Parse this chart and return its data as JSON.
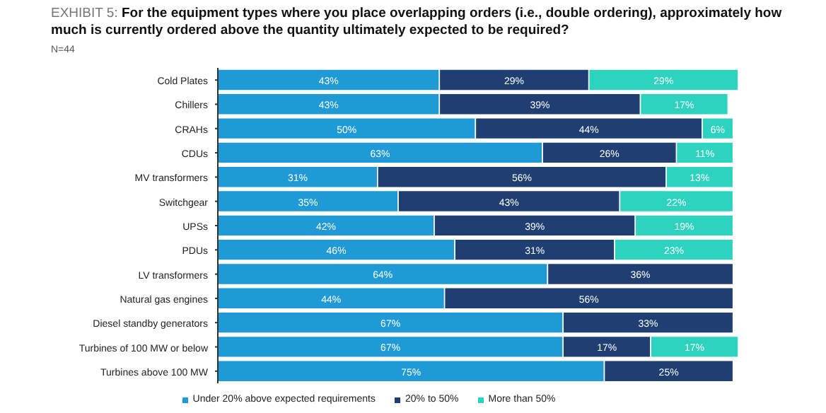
{
  "chart_data": {
    "type": "bar",
    "orientation": "horizontal",
    "stacked": true,
    "title": "EXHIBIT 5: For the equipment types where you place overlapping orders (i.e., double ordering), approximately how much is currently ordered above the quantity ultimately expected to be required?",
    "subtitle": "N=44",
    "categories": [
      "Cold Plates",
      "Chillers",
      "CRAHs",
      "CDUs",
      "MV transformers",
      "Switchgear",
      "UPSs",
      "PDUs",
      "LV transformers",
      "Natural gas engines",
      "Diesel standby generators",
      "Turbines of 100 MW or below",
      "Turbines above 100 MW"
    ],
    "series": [
      {
        "name": "Under 20% above expected requirements",
        "color": "#1f9ad6",
        "values": [
          43,
          43,
          50,
          63,
          31,
          35,
          42,
          46,
          64,
          44,
          67,
          67,
          75
        ],
        "value_labels": [
          "43%",
          "43%",
          "50%",
          "63%",
          "31%",
          "35%",
          "42%",
          "46%",
          "64%",
          "44%",
          "67%",
          "67%",
          "75%"
        ]
      },
      {
        "name": "20% to 50%",
        "color": "#1f3f73",
        "values": [
          29,
          39,
          44,
          26,
          56,
          43,
          39,
          31,
          36,
          56,
          33,
          17,
          25
        ],
        "value_labels": [
          "29%",
          "39%",
          "44%",
          "26%",
          "56%",
          "43%",
          "39%",
          "31%",
          "36%",
          "56%",
          "33%",
          "17%",
          "25%"
        ]
      },
      {
        "name": "More than 50%",
        "color": "#2ed3c0",
        "values": [
          29,
          17,
          6,
          11,
          13,
          22,
          19,
          23,
          null,
          null,
          null,
          17,
          null
        ],
        "value_labels": [
          "29%",
          "17%",
          "6%",
          "11%",
          "13%",
          "22%",
          "19%",
          "23%",
          null,
          null,
          null,
          "17%",
          null
        ]
      }
    ],
    "legend": "bottom"
  }
}
